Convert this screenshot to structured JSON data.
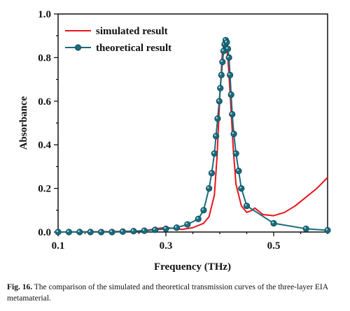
{
  "chart_data": {
    "type": "line",
    "title": "",
    "xlabel": "Frequency (THz)",
    "ylabel": "Absorbance",
    "xlim": [
      0.1,
      0.6
    ],
    "ylim": [
      0.0,
      1.0
    ],
    "xticks": [
      0.1,
      0.3,
      0.5
    ],
    "xtick_labels": [
      "0.1",
      "0.3",
      "0.5"
    ],
    "yticks": [
      0.0,
      0.2,
      0.4,
      0.6,
      0.8,
      1.0
    ],
    "ytick_labels": [
      "0.0",
      "0.2",
      "0.4",
      "0.6",
      "0.8",
      "1.0"
    ],
    "grid": false,
    "legend_position": "top-left",
    "series": [
      {
        "name": "simulated result",
        "color": "#e8141b",
        "marker": "none",
        "x": [
          0.1,
          0.2,
          0.25,
          0.27,
          0.29,
          0.3,
          0.31,
          0.33,
          0.35,
          0.37,
          0.38,
          0.39,
          0.395,
          0.4,
          0.405,
          0.41,
          0.415,
          0.42,
          0.425,
          0.43,
          0.44,
          0.45,
          0.46,
          0.465,
          0.47,
          0.48,
          0.5,
          0.52,
          0.54,
          0.56,
          0.58,
          0.6
        ],
        "y": [
          0.0,
          0.002,
          0.005,
          0.01,
          0.018,
          0.02,
          0.018,
          0.012,
          0.02,
          0.04,
          0.07,
          0.17,
          0.35,
          0.62,
          0.83,
          0.88,
          0.8,
          0.6,
          0.38,
          0.22,
          0.12,
          0.09,
          0.1,
          0.11,
          0.1,
          0.08,
          0.075,
          0.09,
          0.12,
          0.16,
          0.2,
          0.25
        ]
      },
      {
        "name": "theoretical result",
        "color": "#1a6b7c",
        "marker": "circle",
        "x": [
          0.1,
          0.12,
          0.14,
          0.16,
          0.18,
          0.2,
          0.22,
          0.24,
          0.26,
          0.28,
          0.3,
          0.32,
          0.34,
          0.36,
          0.37,
          0.38,
          0.385,
          0.39,
          0.393,
          0.396,
          0.399,
          0.401,
          0.403,
          0.405,
          0.407,
          0.409,
          0.411,
          0.413,
          0.415,
          0.417,
          0.419,
          0.421,
          0.423,
          0.426,
          0.43,
          0.435,
          0.44,
          0.45,
          0.5,
          0.56,
          0.6
        ],
        "y": [
          0.0,
          0.0,
          0.0,
          0.0,
          0.0,
          0.0,
          0.002,
          0.004,
          0.006,
          0.01,
          0.015,
          0.02,
          0.035,
          0.06,
          0.1,
          0.2,
          0.27,
          0.36,
          0.44,
          0.52,
          0.6,
          0.66,
          0.72,
          0.78,
          0.83,
          0.86,
          0.88,
          0.87,
          0.84,
          0.8,
          0.72,
          0.63,
          0.54,
          0.45,
          0.36,
          0.28,
          0.2,
          0.12,
          0.04,
          0.015,
          0.008
        ]
      }
    ]
  },
  "caption": {
    "label": "Fig. 16.",
    "text": "The comparison of the simulated and theoretical transmission curves of the three-layer EIA metamaterial."
  }
}
